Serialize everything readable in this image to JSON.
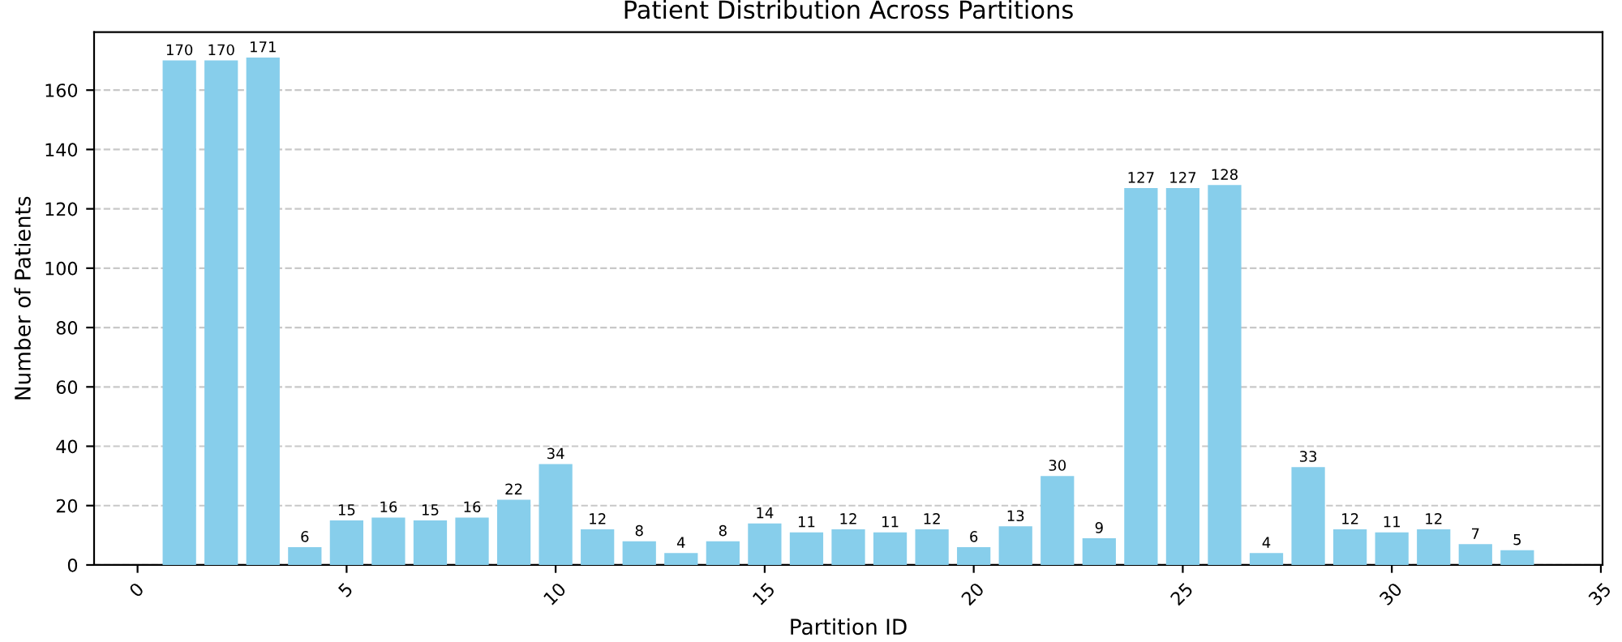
{
  "chart_data": {
    "type": "bar",
    "title": "Patient Distribution Across Partitions",
    "xlabel": "Partition ID",
    "ylabel": "Number of Patients",
    "x": [
      1,
      2,
      3,
      4,
      5,
      6,
      7,
      8,
      9,
      10,
      11,
      12,
      13,
      14,
      15,
      16,
      17,
      18,
      19,
      20,
      21,
      22,
      23,
      24,
      25,
      26,
      27,
      28,
      29,
      30,
      31,
      32,
      33
    ],
    "values": [
      170,
      170,
      171,
      6,
      15,
      16,
      15,
      16,
      22,
      34,
      12,
      8,
      4,
      8,
      14,
      11,
      12,
      11,
      12,
      6,
      13,
      30,
      9,
      127,
      127,
      128,
      4,
      33,
      12,
      11,
      12,
      7,
      5
    ],
    "color": "#87ceeb",
    "data_labels": true,
    "xlim": [
      -1.04,
      35.04
    ],
    "xticks": [
      0,
      5,
      10,
      15,
      20,
      25,
      30,
      35
    ],
    "ylim": [
      0,
      179.55
    ],
    "yticks": [
      0,
      20,
      40,
      60,
      80,
      100,
      120,
      140,
      160
    ],
    "grid": "y"
  }
}
